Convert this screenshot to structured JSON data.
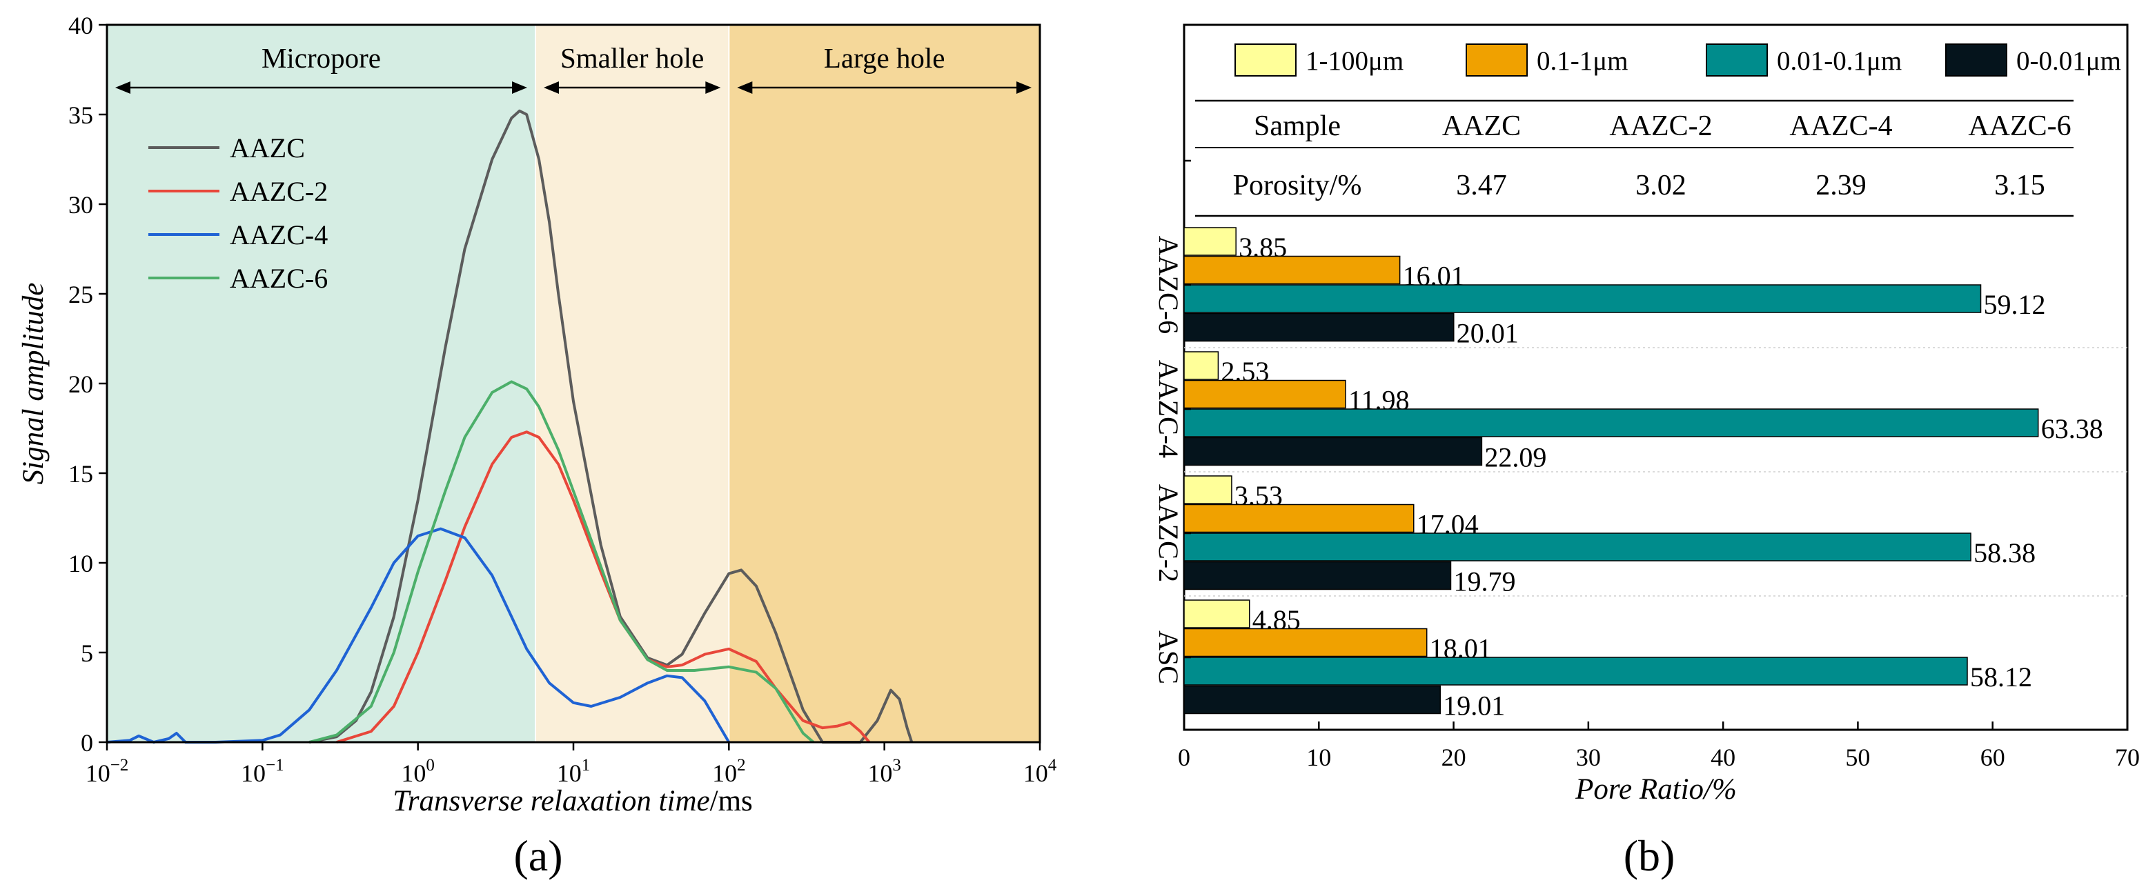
{
  "chart_data": [
    {
      "type": "line",
      "panel_label": "(a)",
      "xlabel_italic": "Transverse relaxation time",
      "xlabel_unit": "/ms",
      "ylabel": "Signal amplitude",
      "xscale": "log",
      "xlim": [
        0.01,
        10000
      ],
      "ylim": [
        0,
        40
      ],
      "x_ticks": [
        {
          "base": "10",
          "exp": "−2"
        },
        {
          "base": "10",
          "exp": "−1"
        },
        {
          "base": "10",
          "exp": "0"
        },
        {
          "base": "10",
          "exp": "1"
        },
        {
          "base": "10",
          "exp": "2"
        },
        {
          "base": "10",
          "exp": "3"
        },
        {
          "base": "10",
          "exp": "4"
        }
      ],
      "y_ticks": [
        "0",
        "5",
        "10",
        "15",
        "20",
        "25",
        "30",
        "35",
        "40"
      ],
      "regions": [
        {
          "label": "Micropore",
          "x_from": 0.01,
          "x_to": 5.7,
          "color": "#d5ede3"
        },
        {
          "label": "Smaller hole",
          "x_from": 5.7,
          "x_to": 100,
          "color": "#faefd9"
        },
        {
          "label": "Large hole",
          "x_from": 100,
          "x_to": 10000,
          "color": "#f5d89a"
        }
      ],
      "legend_position": "top-left",
      "series": [
        {
          "name": "AAZC",
          "color": "#5c5c5c",
          "points": [
            [
              0.2,
              0
            ],
            [
              0.3,
              0.3
            ],
            [
              0.4,
              1.2
            ],
            [
              0.5,
              2.8
            ],
            [
              0.7,
              7
            ],
            [
              1,
              13.5
            ],
            [
              1.5,
              22
            ],
            [
              2,
              27.5
            ],
            [
              3,
              32.5
            ],
            [
              4,
              34.8
            ],
            [
              4.5,
              35.2
            ],
            [
              5,
              35
            ],
            [
              6,
              32.5
            ],
            [
              7,
              29
            ],
            [
              8,
              25
            ],
            [
              10,
              19
            ],
            [
              15,
              11
            ],
            [
              20,
              7
            ],
            [
              30,
              4.7
            ],
            [
              40,
              4.3
            ],
            [
              50,
              4.9
            ],
            [
              70,
              7.2
            ],
            [
              100,
              9.4
            ],
            [
              120,
              9.6
            ],
            [
              150,
              8.7
            ],
            [
              200,
              6.1
            ],
            [
              300,
              1.8
            ],
            [
              400,
              0
            ],
            [
              700,
              0
            ],
            [
              900,
              1.2
            ],
            [
              1100,
              2.9
            ],
            [
              1250,
              2.4
            ],
            [
              1400,
              0.8
            ],
            [
              1500,
              0
            ]
          ]
        },
        {
          "name": "AAZC-2",
          "color": "#e8473a",
          "points": [
            [
              0.3,
              0
            ],
            [
              0.5,
              0.6
            ],
            [
              0.7,
              2
            ],
            [
              1,
              5
            ],
            [
              1.5,
              9
            ],
            [
              2,
              12
            ],
            [
              3,
              15.5
            ],
            [
              4,
              17
            ],
            [
              5,
              17.3
            ],
            [
              6,
              17
            ],
            [
              8,
              15.5
            ],
            [
              10,
              13.5
            ],
            [
              15,
              9.5
            ],
            [
              20,
              6.8
            ],
            [
              30,
              4.6
            ],
            [
              40,
              4.2
            ],
            [
              50,
              4.3
            ],
            [
              70,
              4.9
            ],
            [
              100,
              5.2
            ],
            [
              150,
              4.5
            ],
            [
              200,
              3
            ],
            [
              300,
              1.2
            ],
            [
              400,
              0.8
            ],
            [
              500,
              0.9
            ],
            [
              600,
              1.1
            ],
            [
              700,
              0.6
            ],
            [
              800,
              0
            ]
          ]
        },
        {
          "name": "AAZC-4",
          "color": "#1f63d4",
          "points": [
            [
              0.01,
              0
            ],
            [
              0.014,
              0.1
            ],
            [
              0.016,
              0.35
            ],
            [
              0.02,
              0
            ],
            [
              0.025,
              0.2
            ],
            [
              0.028,
              0.5
            ],
            [
              0.032,
              0
            ],
            [
              0.05,
              0
            ],
            [
              0.1,
              0.1
            ],
            [
              0.13,
              0.4
            ],
            [
              0.2,
              1.8
            ],
            [
              0.3,
              4
            ],
            [
              0.5,
              7.5
            ],
            [
              0.7,
              10
            ],
            [
              1,
              11.5
            ],
            [
              1.4,
              11.9
            ],
            [
              2,
              11.4
            ],
            [
              3,
              9.3
            ],
            [
              4,
              7
            ],
            [
              5,
              5.2
            ],
            [
              7,
              3.3
            ],
            [
              10,
              2.2
            ],
            [
              13,
              2
            ],
            [
              20,
              2.5
            ],
            [
              30,
              3.3
            ],
            [
              40,
              3.7
            ],
            [
              50,
              3.6
            ],
            [
              70,
              2.3
            ],
            [
              100,
              0
            ]
          ]
        },
        {
          "name": "AAZC-6",
          "color": "#4caf6a",
          "points": [
            [
              0.2,
              0
            ],
            [
              0.3,
              0.4
            ],
            [
              0.5,
              2
            ],
            [
              0.7,
              5
            ],
            [
              1,
              9.5
            ],
            [
              1.5,
              14
            ],
            [
              2,
              17
            ],
            [
              3,
              19.5
            ],
            [
              4,
              20.1
            ],
            [
              5,
              19.7
            ],
            [
              6,
              18.7
            ],
            [
              8,
              16.3
            ],
            [
              10,
              14
            ],
            [
              15,
              9.8
            ],
            [
              20,
              6.8
            ],
            [
              30,
              4.6
            ],
            [
              40,
              4
            ],
            [
              60,
              4
            ],
            [
              100,
              4.2
            ],
            [
              150,
              3.9
            ],
            [
              200,
              3
            ],
            [
              300,
              0.5
            ],
            [
              350,
              0
            ]
          ]
        }
      ]
    },
    {
      "type": "bar",
      "orientation": "horizontal",
      "panel_label": "(b)",
      "xlabel": "Pore Ratio/%",
      "xlim": [
        0,
        70
      ],
      "x_ticks": [
        "0",
        "10",
        "20",
        "30",
        "40",
        "50",
        "60",
        "70"
      ],
      "legend_position": "top",
      "series": [
        {
          "name": "1-100μm",
          "color": "#ffff99"
        },
        {
          "name": "0.1-1μm",
          "color": "#f0a100"
        },
        {
          "name": "0.01-0.1μm",
          "color": "#008c8c"
        },
        {
          "name": "0-0.01μm",
          "color": "#05141c"
        }
      ],
      "groups": [
        {
          "label": "AAZC-6",
          "values": [
            3.85,
            16.01,
            59.12,
            20.01
          ],
          "labels": [
            "3.85",
            "16.01",
            "59.12",
            "20.01"
          ]
        },
        {
          "label": "AAZC-4",
          "values": [
            2.53,
            11.98,
            63.38,
            22.09
          ],
          "labels": [
            "2.53",
            "11.98",
            "63.38",
            "22.09"
          ]
        },
        {
          "label": "AAZC-2",
          "values": [
            3.53,
            17.04,
            58.38,
            19.79
          ],
          "labels": [
            "3.53",
            "17.04",
            "58.38",
            "19.79"
          ]
        },
        {
          "label": "ASC",
          "values": [
            4.85,
            18.01,
            58.12,
            19.01
          ],
          "labels": [
            "4.85",
            "18.01",
            "58.12",
            "19.01"
          ]
        }
      ],
      "table": {
        "header": [
          "Sample",
          "AAZC",
          "AAZC-2",
          "AAZC-4",
          "AAZC-6"
        ],
        "rows": [
          [
            "Porosity/%",
            "3.47",
            "3.02",
            "2.39",
            "3.15"
          ]
        ]
      }
    }
  ]
}
